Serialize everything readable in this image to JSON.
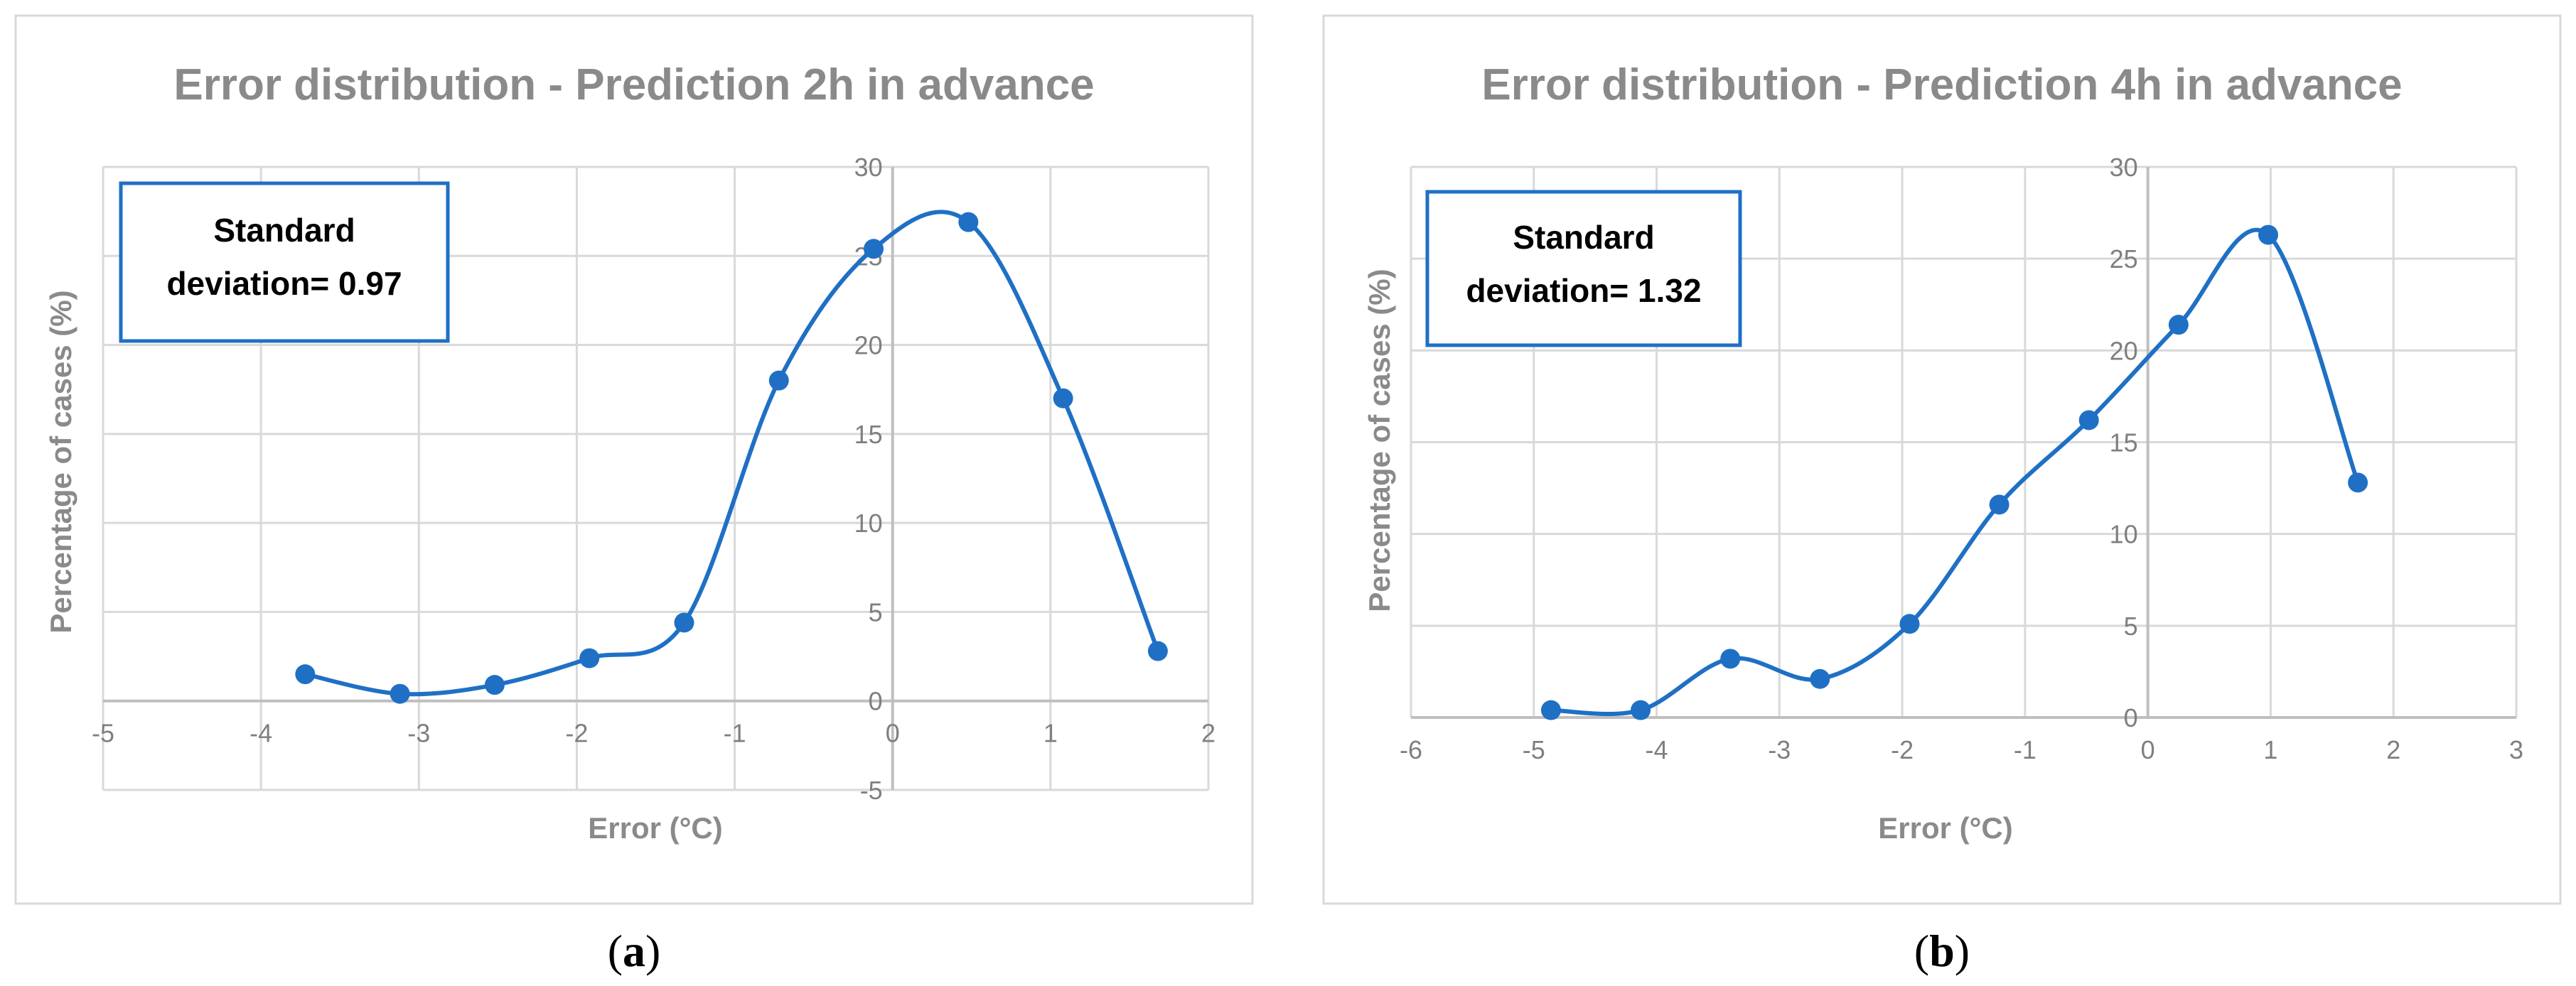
{
  "colors": {
    "series": "#1f70c4",
    "grid": "#d9d9d9",
    "axis": "#bfbfbf",
    "text": "#8a8a8a",
    "box": "#1f70c4"
  },
  "chart_data": [
    {
      "type": "line",
      "title": "Error distribution - Prediction 2h in advance",
      "xlabel": "Error (°C)",
      "ylabel": "Percentage  of cases (%)",
      "xlim": [
        -5,
        2
      ],
      "ylim": [
        -5,
        30
      ],
      "xticks": [
        "-5",
        "-4",
        "-3",
        "-2",
        "-1",
        "0",
        "1",
        "2"
      ],
      "yticks": [
        "-5",
        "0",
        "5",
        "10",
        "15",
        "20",
        "25",
        "30"
      ],
      "grid": true,
      "smooth": true,
      "points": [
        {
          "x": -3.72,
          "y": 1.5
        },
        {
          "x": -3.12,
          "y": 0.4
        },
        {
          "x": -2.52,
          "y": 0.9
        },
        {
          "x": -1.92,
          "y": 2.4
        },
        {
          "x": -1.32,
          "y": 4.4
        },
        {
          "x": -0.72,
          "y": 18.0
        },
        {
          "x": -0.12,
          "y": 25.4
        },
        {
          "x": 0.48,
          "y": 26.9
        },
        {
          "x": 1.08,
          "y": 17.0
        },
        {
          "x": 1.68,
          "y": 2.8
        }
      ],
      "annotation": {
        "line1": "Standard",
        "line2": "deviation= 0.97"
      },
      "caption": {
        "open": "(",
        "letter": "a",
        "close": ")"
      }
    },
    {
      "type": "line",
      "title": "Error distribution - Prediction 4h in advance",
      "xlabel": "Error (°C)",
      "ylabel": "Percentage  of cases (%)",
      "xlim": [
        -6,
        3
      ],
      "ylim": [
        0,
        30
      ],
      "xticks": [
        "-6",
        "-5",
        "-4",
        "-3",
        "-2",
        "-1",
        "0",
        "1",
        "2",
        "3"
      ],
      "yticks": [
        "0",
        "5",
        "10",
        "15",
        "20",
        "25",
        "30"
      ],
      "grid": true,
      "smooth": true,
      "points": [
        {
          "x": -4.86,
          "y": 0.4
        },
        {
          "x": -4.13,
          "y": 0.4
        },
        {
          "x": -3.4,
          "y": 3.2
        },
        {
          "x": -2.67,
          "y": 2.1
        },
        {
          "x": -1.94,
          "y": 5.1
        },
        {
          "x": -1.21,
          "y": 11.6
        },
        {
          "x": -0.48,
          "y": 16.2
        },
        {
          "x": 0.25,
          "y": 21.4
        },
        {
          "x": 0.98,
          "y": 26.3
        },
        {
          "x": 1.71,
          "y": 12.8
        }
      ],
      "annotation": {
        "line1": "Standard",
        "line2": "deviation= 1.32"
      },
      "caption": {
        "open": "(",
        "letter": "b",
        "close": ")"
      }
    }
  ]
}
